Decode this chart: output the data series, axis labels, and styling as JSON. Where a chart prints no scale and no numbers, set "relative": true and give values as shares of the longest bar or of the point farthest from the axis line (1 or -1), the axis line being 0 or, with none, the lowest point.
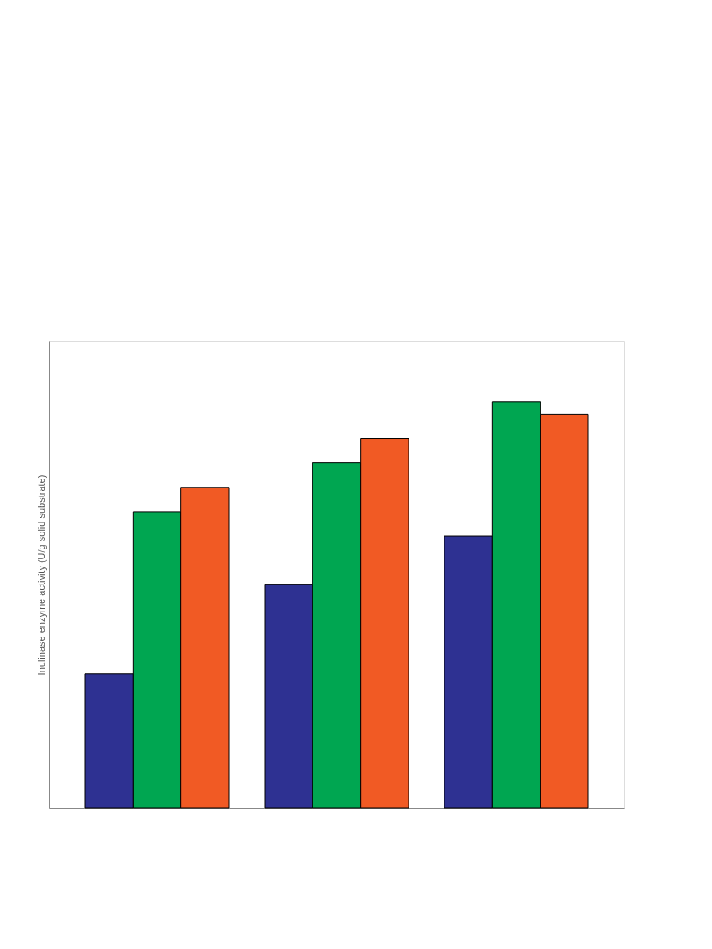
{
  "chart_data": {
    "type": "bar",
    "relative": true,
    "ylabel": "Inulinase enzyme activity (U/g solid substrate)",
    "categories": [
      null,
      null,
      null
    ],
    "series": [
      {
        "color": "#2e3192",
        "values": [
          0.33,
          0.55,
          0.67
        ]
      },
      {
        "color": "#00a651",
        "values": [
          0.73,
          0.85,
          1.0
        ]
      },
      {
        "color": "#f15a24",
        "values": [
          0.79,
          0.91,
          0.97
        ]
      }
    ],
    "legend": false,
    "grid": false
  }
}
